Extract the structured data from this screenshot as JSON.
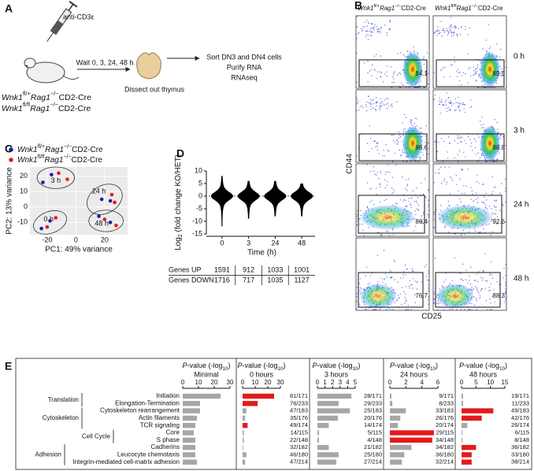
{
  "panels": [
    "A",
    "B",
    "C",
    "D",
    "E"
  ],
  "diagram": {
    "antibody": "anti-CD3ε",
    "wait": "Wait 0, 3, 24, 48 h",
    "dissect": "Dissect out thymus",
    "steps": [
      "Sort DN3 and DN4 cells",
      "Purify RNA",
      "RNAseq"
    ]
  },
  "flow": {
    "rows": [
      "0 h",
      "3 h",
      "24 h",
      "48 h"
    ],
    "percentages": [
      [
        84.1,
        89.5
      ],
      [
        86.6,
        88.8
      ],
      [
        86.4,
        92.6
      ],
      [
        76.7,
        88.3
      ]
    ],
    "ylabel": "CD44",
    "xlabel": "CD25"
  },
  "chart_data": [
    {
      "type": "scatter",
      "xlabel": "PC1: 49% variance",
      "ylabel": "PC2: 13% variance",
      "xlim": [
        -32,
        36
      ],
      "ylim": [
        -18,
        26
      ],
      "xticks": [
        -20,
        0,
        20
      ],
      "yticks": [
        -10,
        0,
        10,
        20
      ],
      "grid": true,
      "series": [
        {
          "name": "Wnk1fl/+Rag1−/−CD2-Cre",
          "color": "#1c1ca8",
          "x": [
            -23,
            -17,
            18,
            24,
            -24,
            -18,
            16,
            24
          ],
          "y": [
            16,
            21,
            5,
            4,
            -14,
            -9,
            -6,
            -10
          ]
        },
        {
          "name": "Wnk1fl/flRag1−/−CD2-Cre",
          "color": "#e31a1c",
          "x": [
            -12,
            -6,
            25,
            27,
            -14,
            -20,
            20,
            28
          ],
          "y": [
            22,
            18,
            8,
            3,
            -7,
            -13,
            -8,
            -12
          ]
        }
      ],
      "annotations": [
        "3 h",
        "24 h",
        "0 h",
        "48 h"
      ]
    },
    {
      "type": "violin",
      "categories": [
        "0",
        "3",
        "24",
        "48"
      ],
      "xlabel": "Time (h)",
      "ylabel": "Log2 (fold change KO/HET)",
      "ylim": [
        -15,
        10
      ],
      "yticks": [
        -15,
        -10,
        -5,
        0,
        5,
        10
      ],
      "min": [
        -12,
        -9,
        -8,
        -8
      ],
      "max": [
        8,
        6,
        6,
        5
      ],
      "color": "#000000",
      "reference_line": 0,
      "table": {
        "row_labels": [
          "Genes UP",
          "Genes DOWN"
        ],
        "rows": [
          [
            1591,
            912,
            1033,
            1001
          ],
          [
            1716,
            717,
            1035,
            1127
          ]
        ]
      }
    },
    {
      "type": "bar",
      "orientation": "horizontal",
      "xlabel": "P-value (-log10)",
      "title": "Minimal",
      "xlim": [
        0,
        30
      ],
      "xticks": [
        0,
        10,
        20,
        30
      ],
      "categories": [
        "Initiation",
        "Elongation-Termination",
        "Cytoskeleton rearrangement",
        "Actin filaments",
        "TCR signaling",
        "Core",
        "S phase",
        "Cadherins",
        "Leucocyte chemotaxis",
        "Integrin-mediated cell-matrix adhesion"
      ],
      "groups": [
        {
          "label": "Translation",
          "size": 2
        },
        {
          "label": "Cytoskeleton",
          "size": 3
        },
        {
          "label": "Cell Cycle",
          "size": 2
        },
        {
          "label": "Adhesion",
          "size": 3
        }
      ],
      "values": [
        24,
        11,
        11,
        9,
        8,
        7,
        8,
        8,
        8,
        9
      ],
      "colors": [
        "#a6a6a6",
        "#a6a6a6",
        "#a6a6a6",
        "#a6a6a6",
        "#a6a6a6",
        "#a6a6a6",
        "#a6a6a6",
        "#a6a6a6",
        "#a6a6a6",
        "#a6a6a6"
      ]
    },
    {
      "type": "bar",
      "orientation": "horizontal",
      "xlabel": "P-value (-log10)",
      "title": "0 hours",
      "xlim": [
        0,
        30
      ],
      "xticks": [
        0,
        10,
        20,
        30
      ],
      "values": [
        25,
        12,
        3,
        2,
        4,
        1,
        1,
        0.5,
        3,
        2
      ],
      "colors": [
        "#e31a1c",
        "#e31a1c",
        "#a6a6a6",
        "#a6a6a6",
        "#e31a1c",
        "#a6a6a6",
        "#a6a6a6",
        "#a6a6a6",
        "#a6a6a6",
        "#a6a6a6"
      ],
      "counts": [
        "81/171",
        "76/233",
        "47/183",
        "35/176",
        "49/174",
        "14/115",
        "22/148",
        "32/182",
        "46/180",
        "47/214"
      ]
    },
    {
      "type": "bar",
      "orientation": "horizontal",
      "xlabel": "P-value (-log10)",
      "title": "3 hours",
      "xlim": [
        0,
        5
      ],
      "xticks": [
        0,
        1,
        2,
        3,
        4,
        5
      ],
      "values": [
        4.5,
        2.8,
        4.3,
        2.7,
        1.5,
        0.2,
        0.2,
        1.5,
        2.8,
        2.5
      ],
      "colors": [
        "#a6a6a6",
        "#a6a6a6",
        "#a6a6a6",
        "#a6a6a6",
        "#a6a6a6",
        "#a6a6a6",
        "#a6a6a6",
        "#a6a6a6",
        "#a6a6a6",
        "#a6a6a6"
      ],
      "counts": [
        "28/171",
        "29/233",
        "25/183",
        "20/176",
        "14/174",
        "5/115",
        "4/148",
        "21/182",
        "25/180",
        "27/214"
      ]
    },
    {
      "type": "bar",
      "orientation": "horizontal",
      "xlabel": "P-value (-log10)",
      "title": "24 hours",
      "xlim": [
        0,
        6
      ],
      "xticks": [
        0,
        2,
        4,
        6
      ],
      "values": [
        0.2,
        0.3,
        2,
        1.3,
        1,
        5.5,
        5.3,
        2.7,
        1.8,
        1.5
      ],
      "colors": [
        "#a6a6a6",
        "#a6a6a6",
        "#a6a6a6",
        "#a6a6a6",
        "#a6a6a6",
        "#e31a1c",
        "#e31a1c",
        "#a6a6a6",
        "#a6a6a6",
        "#a6a6a6"
      ],
      "counts": [
        "9/171",
        "8/233",
        "33/183",
        "26/176",
        "20/174",
        "29/115",
        "34/148",
        "34/182",
        "36/180",
        "32/214"
      ]
    },
    {
      "type": "bar",
      "orientation": "horizontal",
      "xlabel": "P-value (-log10)",
      "title": "48 hours",
      "xlim": [
        0,
        15
      ],
      "xticks": [
        0,
        5,
        10,
        15
      ],
      "values": [
        0.5,
        0.5,
        11,
        7,
        2,
        0.3,
        0.3,
        5,
        3.5,
        3.5
      ],
      "colors": [
        "#a6a6a6",
        "#a6a6a6",
        "#e31a1c",
        "#e31a1c",
        "#a6a6a6",
        "#a6a6a6",
        "#a6a6a6",
        "#e31a1c",
        "#e31a1c",
        "#e31a1c"
      ],
      "counts": [
        "19/171",
        "11/233",
        "49/183",
        "42/176",
        "26/174",
        "6/115",
        "8/148",
        "36/182",
        "33/180",
        "38/214"
      ]
    }
  ]
}
